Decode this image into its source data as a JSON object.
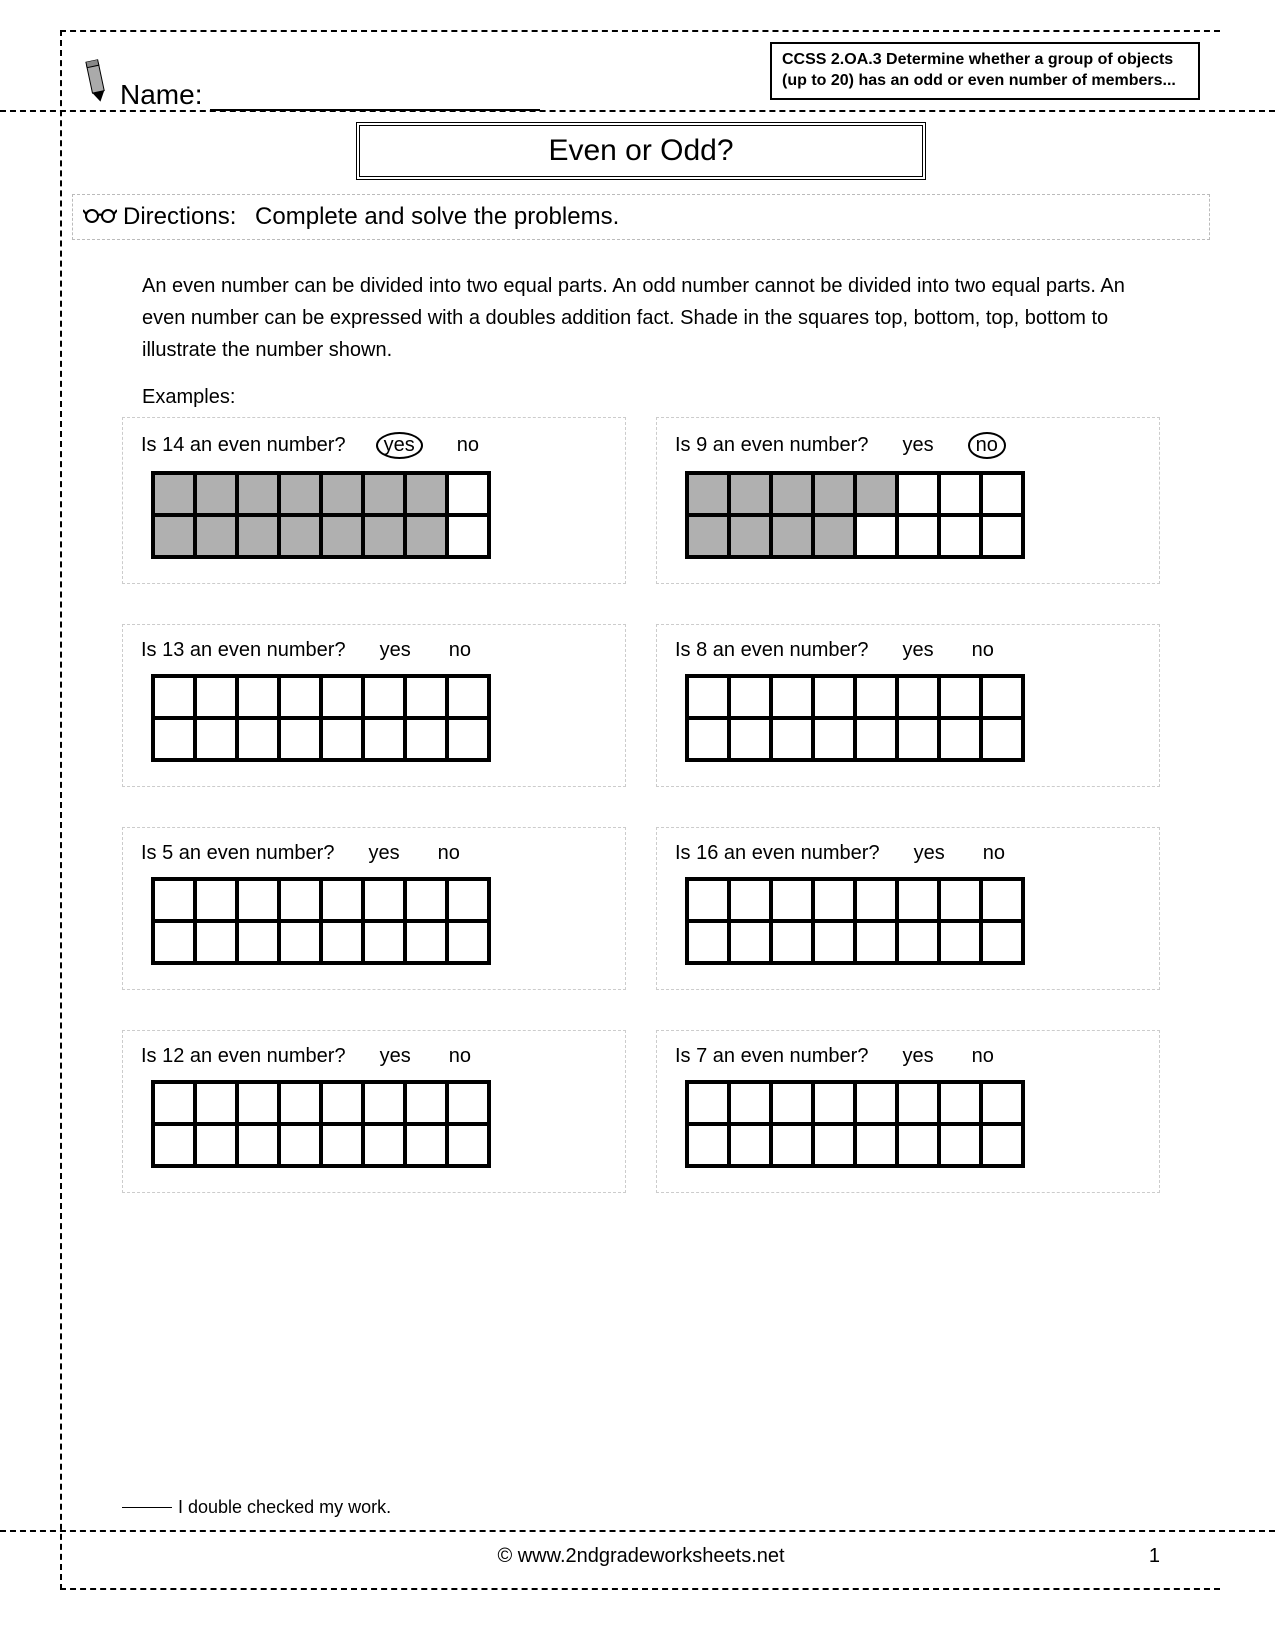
{
  "header": {
    "name_label": "Name:",
    "standard_text": "CCSS 2.OA.3 Determine whether a group of objects (up to 20) has an odd or even number of members..."
  },
  "title": "Even or Odd?",
  "directions_label": "Directions:",
  "directions_text": "Complete and solve the problems.",
  "intro_text": "An even number can be divided into two equal parts.  An odd number cannot be divided into two equal parts.  An even number can be expressed with a doubles addition fact.  Shade in the squares top, bottom, top, bottom to illustrate the number shown.",
  "examples_label": "Examples:",
  "answers": {
    "yes": "yes",
    "no": "no"
  },
  "grid": {
    "cols": 8,
    "rows": 2,
    "shaded_color": "#b0b0b0",
    "border_color": "#000000"
  },
  "problems": [
    {
      "question": "Is 14 an even number?",
      "shaded": 14,
      "circled": "yes"
    },
    {
      "question": "Is 9 an even number?",
      "shaded": 9,
      "circled": "no"
    },
    {
      "question": "Is 13 an even number?",
      "shaded": 0,
      "circled": null
    },
    {
      "question": "Is 8 an even number?",
      "shaded": 0,
      "circled": null
    },
    {
      "question": "Is 5 an even number?",
      "shaded": 0,
      "circled": null
    },
    {
      "question": "Is 16 an even number?",
      "shaded": 0,
      "circled": null
    },
    {
      "question": "Is 12 an even number?",
      "shaded": 0,
      "circled": null
    },
    {
      "question": "Is 7 an even number?",
      "shaded": 0,
      "circled": null
    }
  ],
  "footer": {
    "check_text": "I double checked my work.",
    "url": "© www.2ndgradeworksheets.net",
    "page_number": "1"
  }
}
